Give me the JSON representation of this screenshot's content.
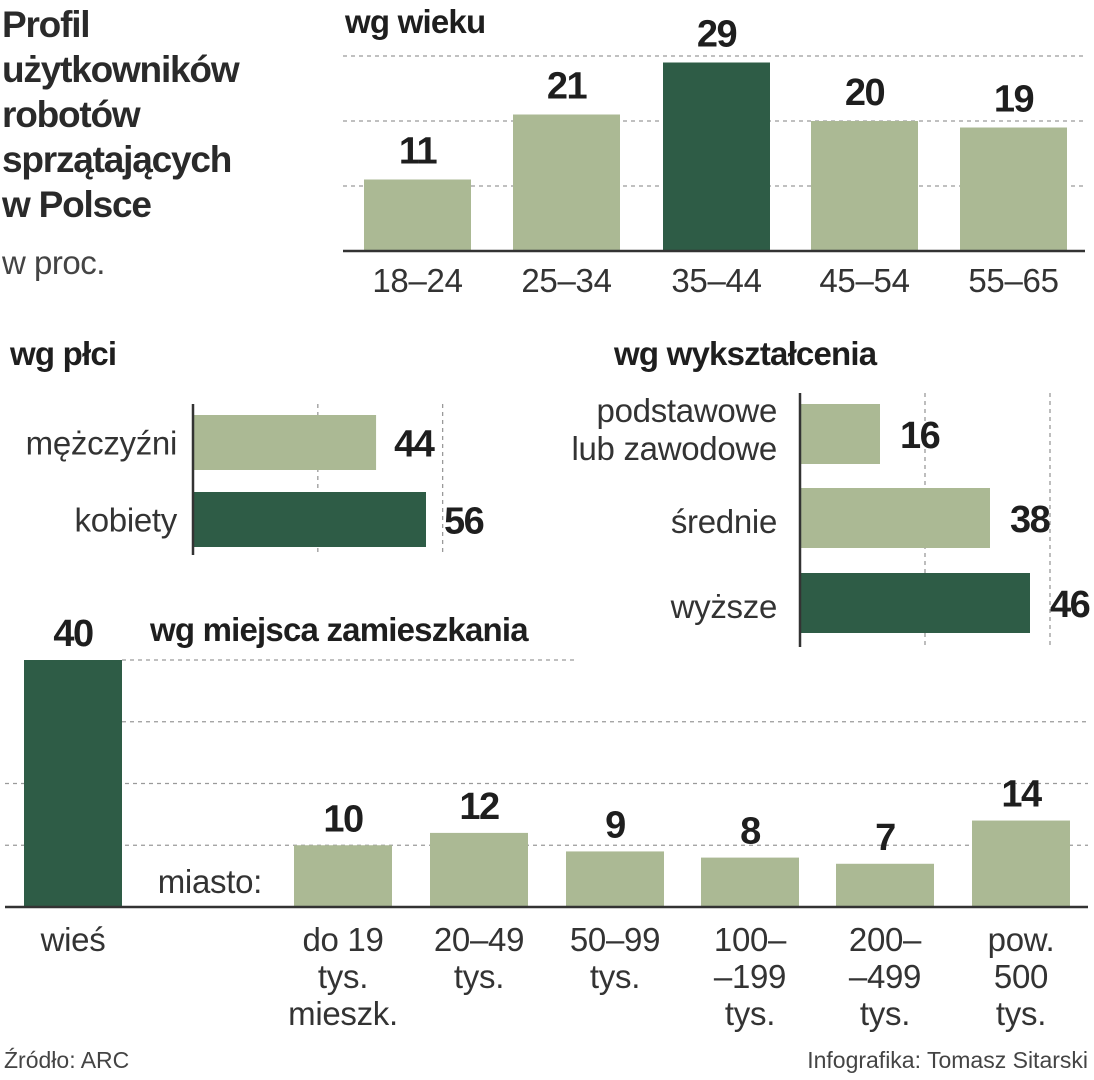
{
  "title": "Profil\nużytkowników\nrobotów\nsprzątających\nw Polsce",
  "unit": "w proc.",
  "colors": {
    "bar": "#abb994",
    "highlight": "#2e5c46",
    "grid": "#9a9a9a",
    "axis": "#333333"
  },
  "chart_data": [
    {
      "id": "age",
      "type": "bar",
      "title": "wg wieku",
      "categories": [
        "18–24",
        "25–34",
        "35–44",
        "45–54",
        "55–65"
      ],
      "values": [
        11,
        21,
        29,
        20,
        19
      ],
      "highlight": [
        2
      ],
      "ylim": [
        0,
        30
      ],
      "grid": true
    },
    {
      "id": "gender",
      "type": "bar",
      "orientation": "horizontal",
      "title": "wg płci",
      "categories": [
        "mężczyźni",
        "kobiety"
      ],
      "values": [
        44,
        56
      ],
      "highlight": [
        1
      ],
      "xlim": [
        0,
        60
      ],
      "grid": true
    },
    {
      "id": "education",
      "type": "bar",
      "orientation": "horizontal",
      "title": "wg wykształcenia",
      "categories": [
        "podstawowe\nlub zawodowe",
        "średnie",
        "wyższe"
      ],
      "values": [
        16,
        38,
        46
      ],
      "highlight": [
        2
      ],
      "xlim": [
        0,
        50
      ],
      "grid": true
    },
    {
      "id": "residence",
      "type": "bar",
      "title": "wg miejsca zamieszkania",
      "group_label": "miasto:",
      "categories": [
        "wieś",
        "do 19\ntys.\nmieszk.",
        "20–49\ntys.",
        "50–99\ntys.",
        "100–\n–199\ntys.",
        "200–\n–499\ntys.",
        "pow.\n500\ntys."
      ],
      "values": [
        40,
        10,
        12,
        9,
        8,
        7,
        14
      ],
      "highlight": [
        0
      ],
      "ylim": [
        0,
        40
      ],
      "grid": true
    }
  ],
  "footer": {
    "source": "Źródło: ARC",
    "credit": "Infografika: Tomasz Sitarski"
  }
}
